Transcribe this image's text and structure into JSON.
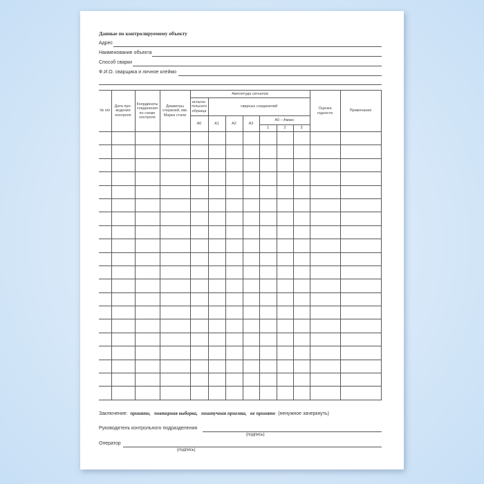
{
  "title": "Данные по контролируемому объекту",
  "fields": [
    "Адрес",
    "Наименование объекта",
    "Способ сварки",
    "Ф.И.О. сварщика и личное клеймо"
  ],
  "table": {
    "headers": {
      "num": "№ п/п",
      "date": "Дата про-ведения контроля",
      "coords": "Координаты соединения по схеме контроля",
      "diam": "Диаметры стержней, мм. Марка стали",
      "amp": "Амплитуда сигналов",
      "sample": "испыта-тельного образца",
      "welds": "сварных соединений",
      "a0": "A0",
      "a1": "A1",
      "a2": "A2",
      "a3": "A3",
      "diff": "A0 – Aмакс",
      "d1": "1",
      "d2": "2",
      "d3": "3",
      "grade": "Оценка годности",
      "note": "Примечание"
    },
    "row_count": 20
  },
  "conclusion": {
    "label": "Заключение:",
    "options": "принято,   повторная выборка,   поштучная приемка,   не принято",
    "hint": "(ненужное зачеркнуть)"
  },
  "head_label": "Руководитель контрольного подразделения",
  "operator_label": "Оператор",
  "signature": "(подпись)"
}
